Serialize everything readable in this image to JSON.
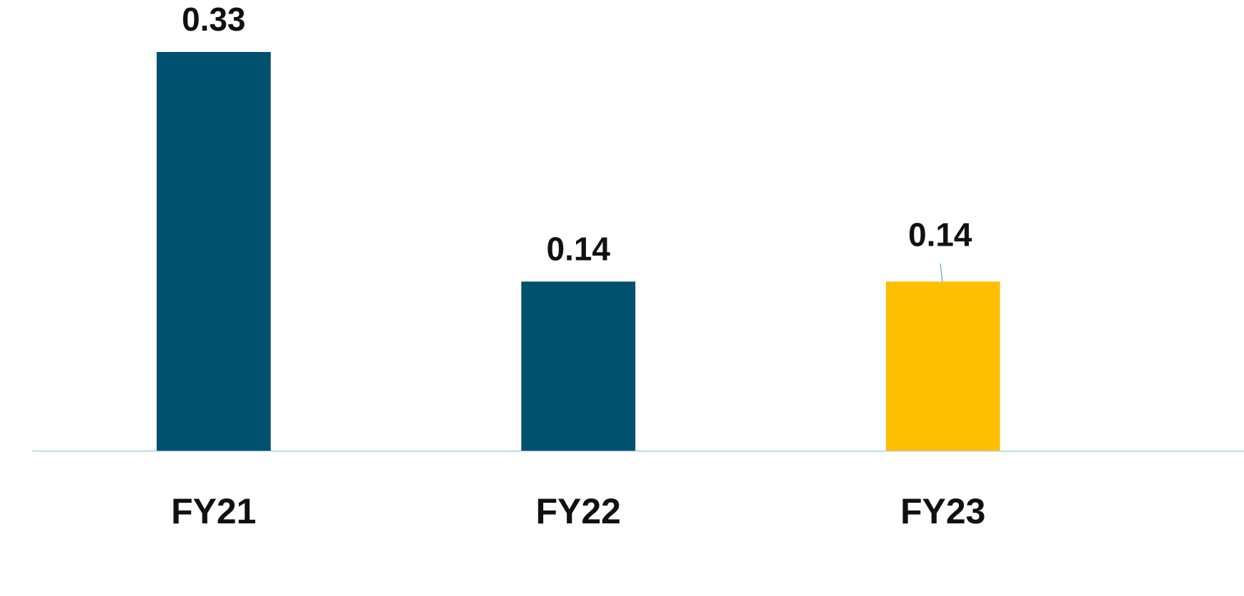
{
  "chart_data": {
    "type": "bar",
    "categories": [
      "FY21",
      "FY22",
      "FY23"
    ],
    "values": [
      0.33,
      0.14,
      0.14
    ],
    "colors": [
      "#00506f",
      "#00506f",
      "#fdbf00"
    ]
  }
}
